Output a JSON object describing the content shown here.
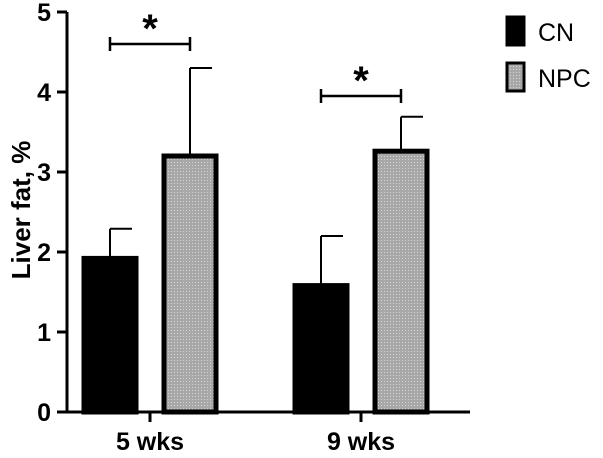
{
  "chart_data": {
    "type": "bar",
    "title": "",
    "xlabel": "",
    "ylabel": "Liver fat, %",
    "ylim": [
      0,
      5
    ],
    "yticks": [
      "0",
      "1",
      "2",
      "3",
      "4",
      "5"
    ],
    "grid": false,
    "legend_position": "top-right",
    "categories": [
      "5 wks",
      "9 wks"
    ],
    "series": [
      {
        "name": "CN",
        "fill": "#000000",
        "values": [
          1.92,
          1.58
        ],
        "errors": [
          0.37,
          0.62
        ]
      },
      {
        "name": "NPC",
        "fill": "#a8a8a8",
        "values": [
          3.2,
          3.26
        ],
        "errors": [
          1.1,
          0.43
        ]
      }
    ],
    "significance": [
      {
        "category": "5 wks",
        "label": "*",
        "bracket_y": 4.6
      },
      {
        "category": "9 wks",
        "label": "*",
        "bracket_y": 3.95
      }
    ]
  }
}
